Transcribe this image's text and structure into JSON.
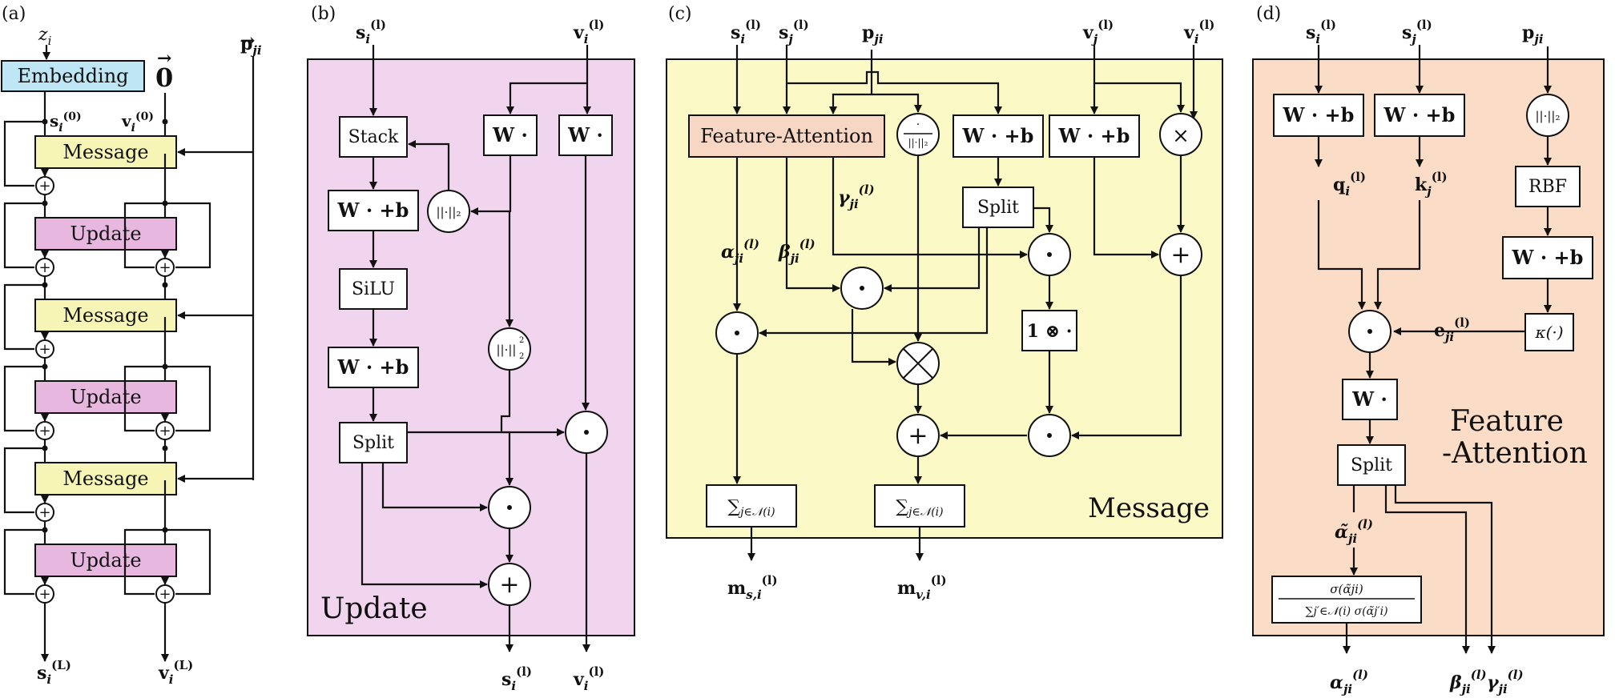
{
  "colors": {
    "embed": "#bfe6f5",
    "message": "#f7f5b5",
    "update": "#e7b7e0",
    "update_panel": "#f1d4ee",
    "message_panel": "#fbf9c6",
    "attn_panel": "#fbdcc6",
    "attn_box": "#f8d6c4"
  },
  "panels": {
    "a": {
      "label": "(a)",
      "z": "z",
      "z_sub": "i",
      "p": "p",
      "p_sub": "ji",
      "embedding": "Embedding",
      "zero": "0",
      "s0": "s",
      "s0_sub": "i",
      "s0_sup": "(0)",
      "v0": "v",
      "v0_sub": "i",
      "v0_sup": "(0)",
      "message": "Message",
      "update": "Update",
      "sL": "s",
      "sL_sub": "i",
      "sL_sup": "(L)",
      "vL": "v",
      "vL_sub": "i",
      "vL_sup": "(L)"
    },
    "b": {
      "label": "(b)",
      "title": "Update",
      "s_in": "s",
      "s_in_sub": "i",
      "s_in_sup": "(l)",
      "v_in": "v",
      "v_in_sub": "i",
      "v_in_sup": "(l)",
      "stack": "Stack",
      "wb1": "W · +b",
      "silu": "SiLU",
      "wb2": "W · +b",
      "split": "Split",
      "w1": "W ·",
      "w2": "W ·",
      "norm": "||·||₂",
      "normsq": "||·||",
      "s_out": "s",
      "v_out": "v"
    },
    "c": {
      "label": "(c)",
      "title": "Message",
      "fa": "Feature-Attention",
      "wb1": "W · +b",
      "wb2": "W · +b",
      "split": "Split",
      "onex": "1 ⊗ ·",
      "sum": "∑",
      "sum_sub": "j∈𝒩(i)",
      "alpha": "α",
      "beta": "β",
      "gamma": "γ",
      "ms": "m",
      "ms_sub": "s,i",
      "mv": "m",
      "mv_sub": "v,i",
      "si": "s",
      "sj": "s",
      "p": "p",
      "vj": "v",
      "vi": "v"
    },
    "d": {
      "label": "(d)",
      "title1": "Feature",
      "title2": "-Attention",
      "wb1": "W · +b",
      "wb2": "W · +b",
      "wb3": "W · +b",
      "norm": "||·||₂",
      "rbf": "RBF",
      "kappa": "κ(·)",
      "w": "W ·",
      "split": "Split",
      "q": "q",
      "k": "k",
      "e": "e",
      "alpha_t": "α̃",
      "softmax_num": "σ(α̃ji)",
      "softmax_den": "∑j′∈𝒩(i) σ(α̃j′i)",
      "alpha": "α",
      "beta": "β",
      "gamma": "γ"
    }
  }
}
